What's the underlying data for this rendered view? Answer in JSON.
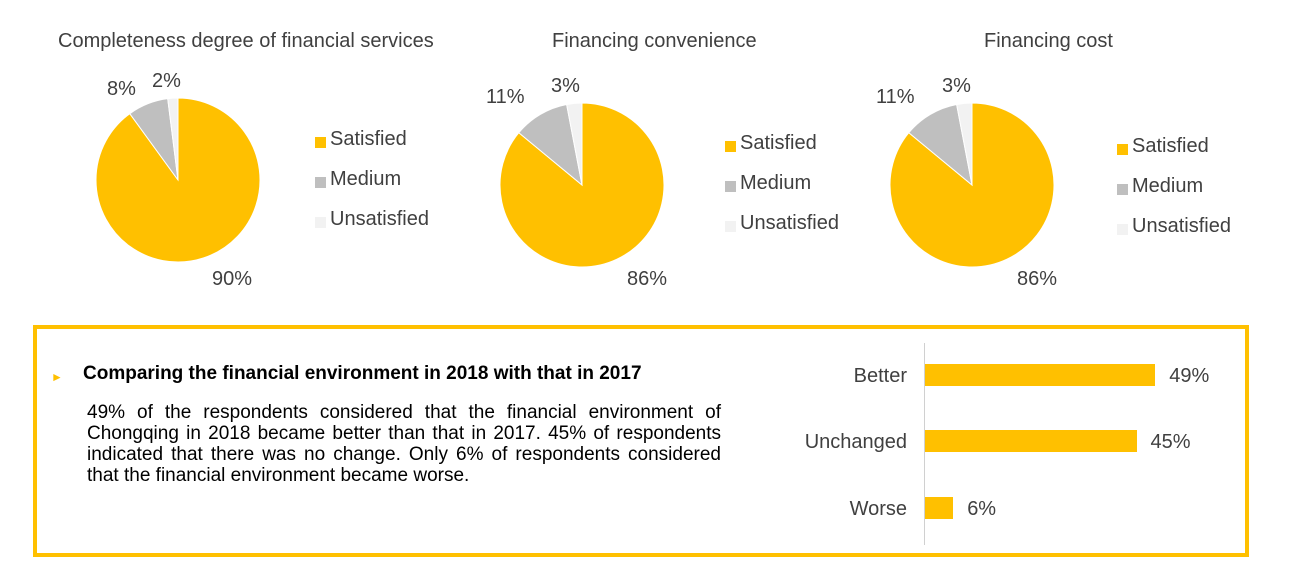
{
  "chart_data": [
    {
      "type": "pie",
      "title": "Completeness degree of financial services",
      "labels": [
        "Satisfied",
        "Medium",
        "Unsatisfied"
      ],
      "values": [
        90,
        8,
        2
      ],
      "value_labels": [
        "90%",
        "8%",
        "2%"
      ],
      "colors": [
        "#FFC000",
        "#BFBFBF",
        "#F2F2F2"
      ],
      "legend_position": "right"
    },
    {
      "type": "pie",
      "title": "Financing convenience",
      "labels": [
        "Satisfied",
        "Medium",
        "Unsatisfied"
      ],
      "values": [
        86,
        11,
        3
      ],
      "value_labels": [
        "86%",
        "11%",
        "3%"
      ],
      "colors": [
        "#FFC000",
        "#BFBFBF",
        "#F2F2F2"
      ],
      "legend_position": "right"
    },
    {
      "type": "pie",
      "title": "Financing cost",
      "labels": [
        "Satisfied",
        "Medium",
        "Unsatisfied"
      ],
      "values": [
        86,
        11,
        3
      ],
      "value_labels": [
        "86%",
        "11%",
        "3%"
      ],
      "colors": [
        "#FFC000",
        "#BFBFBF",
        "#F2F2F2"
      ],
      "legend_position": "right"
    },
    {
      "type": "bar",
      "orientation": "horizontal",
      "categories": [
        "Better",
        "Unchanged",
        "Worse"
      ],
      "values": [
        49,
        45,
        6
      ],
      "value_labels": [
        "49%",
        "45%",
        "6%"
      ],
      "color": "#FFC000",
      "xlim": [
        0,
        50
      ]
    }
  ],
  "summary": {
    "bullet_icon": "triangle-right",
    "heading": "Comparing the financial environment in 2018 with that in 2017",
    "body": "49% of the respondents considered that the financial environment of Chongqing in 2018 became better than that in 2017.  45% of respondents indicated that there was no change.  Only 6% of respondents considered that the financial environment became worse.",
    "border_color": "#FFC000"
  }
}
